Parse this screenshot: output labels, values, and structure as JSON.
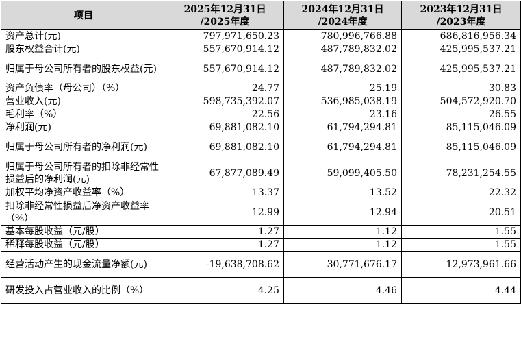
{
  "table": {
    "header": {
      "item": "项目",
      "columns": [
        {
          "line1": "2025年12月31日",
          "line2": "/2025年度"
        },
        {
          "line1": "2024年12月31日",
          "line2": "/2024年度"
        },
        {
          "line1": "2023年12月31日",
          "line2": "/2023年度"
        }
      ]
    },
    "rows": [
      {
        "label": "资产总计(元)",
        "values": [
          "797,971,650.23",
          "780,996,766.88",
          "686,816,956.34"
        ]
      },
      {
        "label": "股东权益合计(元)",
        "values": [
          "557,670,914.12",
          "487,789,832.02",
          "425,995,537.21"
        ]
      },
      {
        "label": "归属于母公司所有者的股东权益(元)",
        "values": [
          "557,670,914.12",
          "487,789,832.02",
          "425,995,537.21"
        ]
      },
      {
        "label": "资产负债率（母公司）（%）",
        "values": [
          "24.77",
          "25.19",
          "30.83"
        ]
      },
      {
        "label": "营业收入(元)",
        "values": [
          "598,735,392.07",
          "536,985,038.19",
          "504,572,920.70"
        ]
      },
      {
        "label": "毛利率（%）",
        "values": [
          "22.56",
          "23.16",
          "26.55"
        ]
      },
      {
        "label": "净利润(元)",
        "values": [
          "69,881,082.10",
          "61,794,294.81",
          "85,115,046.09"
        ]
      },
      {
        "label": "归属于母公司所有者的净利润(元)",
        "values": [
          "69,881,082.10",
          "61,794,294.81",
          "85,115,046.09"
        ]
      },
      {
        "label": "归属于母公司所有者的扣除非经常性损益后的净利润(元)",
        "values": [
          "67,877,089.49",
          "59,099,405.50",
          "78,231,254.55"
        ]
      },
      {
        "label": "加权平均净资产收益率（%）",
        "values": [
          "13.37",
          "13.52",
          "22.32"
        ]
      },
      {
        "label": "扣除非经常性损益后净资产收益率（%）",
        "values": [
          "12.99",
          "12.94",
          "20.51"
        ]
      },
      {
        "label": "基本每股收益（元/股）",
        "values": [
          "1.27",
          "1.12",
          "1.55"
        ]
      },
      {
        "label": "稀释每股收益（元/股）",
        "values": [
          "1.27",
          "1.12",
          "1.55"
        ]
      },
      {
        "label": "经营活动产生的现金流量净额(元)",
        "values": [
          "-19,638,708.62",
          "30,771,676.17",
          "12,973,961.66"
        ]
      },
      {
        "label": "研发投入占营业收入的比例（%）",
        "values": [
          "4.25",
          "4.46",
          "4.44"
        ]
      }
    ]
  }
}
